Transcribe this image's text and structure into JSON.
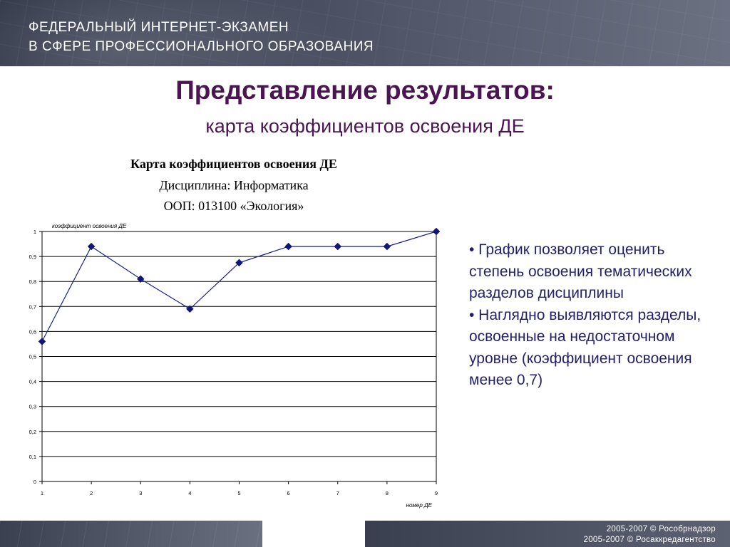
{
  "header": {
    "line1": "ФЕДЕРАЛЬНЫЙ ИНТЕРНЕТ-ЭКЗАМЕН",
    "line2": "В СФЕРЕ ПРОФЕССИОНАЛЬНОГО ОБРАЗОВАНИЯ"
  },
  "slide": {
    "title": "Представление результатов:",
    "subtitle": "карта коэффициентов освоения ДЕ"
  },
  "chart_header": {
    "line1": "Карта коэффициентов освоения ДЕ",
    "line2": "Дисциплина: Информатика",
    "line3": "ООП: 013100 «Экология»"
  },
  "bullets": [
    "• График позволяет оценить степень освоения тематических разделов дисциплины",
    "• Наглядно выявляются разделы, освоенные на недостаточном уровне (коэффициент освоения менее 0,7)"
  ],
  "footer": {
    "line1": "2005-2007 © Рособрнадзор",
    "line2": "2005-2007 © Росаккредагентство"
  },
  "colors": {
    "title": "#4b1552",
    "bullets": "#24206a",
    "series": "#1b1f8a"
  },
  "chart_data": {
    "type": "line",
    "x": [
      1,
      2,
      3,
      4,
      5,
      6,
      7,
      8,
      9
    ],
    "series": [
      {
        "values": [
          0.56,
          0.94,
          0.81,
          0.69,
          0.875,
          0.94,
          0.94,
          0.94,
          1.0
        ]
      }
    ],
    "xlabel": "номер ДЕ",
    "ylabel": "коэффициент освоения ДЕ",
    "yticks": [
      "0",
      "0,1",
      "0,2",
      "0,3",
      "0,4",
      "0,5",
      "0,6",
      "0,7",
      "0,8",
      "0,9",
      "1"
    ],
    "xticks": [
      "1",
      "2",
      "3",
      "4",
      "5",
      "6",
      "7",
      "8",
      "9"
    ],
    "ylim": [
      0,
      1.0
    ],
    "xlim": [
      1,
      9
    ],
    "grid": true
  }
}
